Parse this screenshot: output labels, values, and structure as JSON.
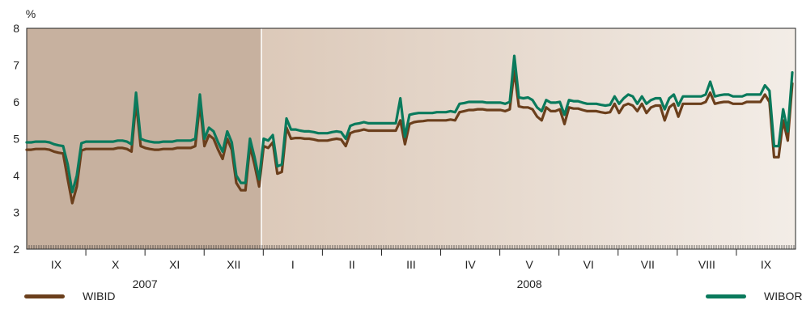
{
  "chart_data": {
    "type": "line",
    "yunit": "%",
    "ylim": [
      2,
      8
    ],
    "yticks": [
      2,
      3,
      4,
      5,
      6,
      7,
      8
    ],
    "grid": false,
    "month_labels": [
      "IX",
      "X",
      "XI",
      "XII",
      "I",
      "II",
      "III",
      "IV",
      "V",
      "VI",
      "VII",
      "VIII",
      "IX"
    ],
    "year_labels": [
      "2007",
      "2008"
    ],
    "legend_placement": "bottom",
    "colors": {
      "WIBID": "#6b3f1c",
      "WIBOR": "#0a7a5c",
      "bg_2007": "#c7b19f",
      "bg_2008_end": "#f3ede7"
    },
    "series": [
      {
        "name": "WIBID",
        "values": [
          4.7,
          4.7,
          4.72,
          4.72,
          4.72,
          4.7,
          4.65,
          4.62,
          4.6,
          3.9,
          3.25,
          3.7,
          4.68,
          4.72,
          4.72,
          4.72,
          4.72,
          4.72,
          4.72,
          4.72,
          4.75,
          4.75,
          4.72,
          4.65,
          6.0,
          4.8,
          4.75,
          4.72,
          4.7,
          4.7,
          4.72,
          4.72,
          4.72,
          4.75,
          4.75,
          4.75,
          4.75,
          4.8,
          5.95,
          4.8,
          5.1,
          5.0,
          4.7,
          4.45,
          5.0,
          4.7,
          3.8,
          3.6,
          3.6,
          4.8,
          4.3,
          3.7,
          4.8,
          4.75,
          4.9,
          4.05,
          4.1,
          5.3,
          5.0,
          5.02,
          5.02,
          5.0,
          5.0,
          4.98,
          4.95,
          4.95,
          4.95,
          4.98,
          5.0,
          4.98,
          4.8,
          5.15,
          5.2,
          5.22,
          5.25,
          5.22,
          5.22,
          5.22,
          5.22,
          5.22,
          5.22,
          5.22,
          5.5,
          4.85,
          5.4,
          5.45,
          5.47,
          5.48,
          5.5,
          5.5,
          5.5,
          5.5,
          5.5,
          5.52,
          5.5,
          5.72,
          5.75,
          5.78,
          5.78,
          5.8,
          5.8,
          5.78,
          5.78,
          5.78,
          5.78,
          5.75,
          5.8,
          6.85,
          5.88,
          5.85,
          5.85,
          5.8,
          5.6,
          5.5,
          5.85,
          5.75,
          5.75,
          5.8,
          5.4,
          5.85,
          5.82,
          5.82,
          5.78,
          5.75,
          5.75,
          5.75,
          5.72,
          5.7,
          5.72,
          5.95,
          5.7,
          5.9,
          5.95,
          5.9,
          5.75,
          5.95,
          5.7,
          5.85,
          5.9,
          5.9,
          5.5,
          5.85,
          5.95,
          5.6,
          5.95,
          5.95,
          5.95,
          5.95,
          5.95,
          6.0,
          6.25,
          5.95,
          5.98,
          6.0,
          6.0,
          5.95,
          5.95,
          5.95,
          6.0,
          6.0,
          6.0,
          6.0,
          6.2,
          6.0,
          4.5,
          4.5,
          5.5,
          4.95,
          6.5
        ]
      },
      {
        "name": "WIBOR",
        "values": [
          4.9,
          4.9,
          4.92,
          4.92,
          4.92,
          4.9,
          4.85,
          4.82,
          4.8,
          4.3,
          3.55,
          4.0,
          4.88,
          4.92,
          4.92,
          4.92,
          4.92,
          4.92,
          4.92,
          4.92,
          4.95,
          4.95,
          4.92,
          4.85,
          6.25,
          5.0,
          4.95,
          4.92,
          4.9,
          4.9,
          4.92,
          4.92,
          4.92,
          4.95,
          4.95,
          4.95,
          4.95,
          5.0,
          6.2,
          5.0,
          5.3,
          5.2,
          4.9,
          4.65,
          5.2,
          4.9,
          4.0,
          3.8,
          3.8,
          5.0,
          4.5,
          3.9,
          5.0,
          4.95,
          5.1,
          4.25,
          4.3,
          5.55,
          5.25,
          5.25,
          5.22,
          5.2,
          5.2,
          5.18,
          5.15,
          5.15,
          5.15,
          5.18,
          5.2,
          5.18,
          5.0,
          5.35,
          5.4,
          5.42,
          5.45,
          5.42,
          5.42,
          5.42,
          5.42,
          5.42,
          5.42,
          5.42,
          6.1,
          5.05,
          5.65,
          5.68,
          5.7,
          5.7,
          5.7,
          5.7,
          5.72,
          5.72,
          5.72,
          5.75,
          5.72,
          5.95,
          5.97,
          6.0,
          6.0,
          6.0,
          6.0,
          5.98,
          5.98,
          5.98,
          5.98,
          5.95,
          6.0,
          7.25,
          6.12,
          6.1,
          6.12,
          6.05,
          5.85,
          5.75,
          6.05,
          5.98,
          5.98,
          6.0,
          5.65,
          6.05,
          6.02,
          6.02,
          5.98,
          5.95,
          5.95,
          5.95,
          5.92,
          5.9,
          5.92,
          6.15,
          5.95,
          6.1,
          6.2,
          6.15,
          5.95,
          6.15,
          5.95,
          6.05,
          6.1,
          6.1,
          5.8,
          6.1,
          6.2,
          5.9,
          6.15,
          6.15,
          6.15,
          6.15,
          6.15,
          6.2,
          6.55,
          6.15,
          6.18,
          6.2,
          6.2,
          6.15,
          6.15,
          6.15,
          6.2,
          6.2,
          6.2,
          6.2,
          6.45,
          6.3,
          4.8,
          4.8,
          5.8,
          5.2,
          6.8
        ]
      }
    ]
  }
}
